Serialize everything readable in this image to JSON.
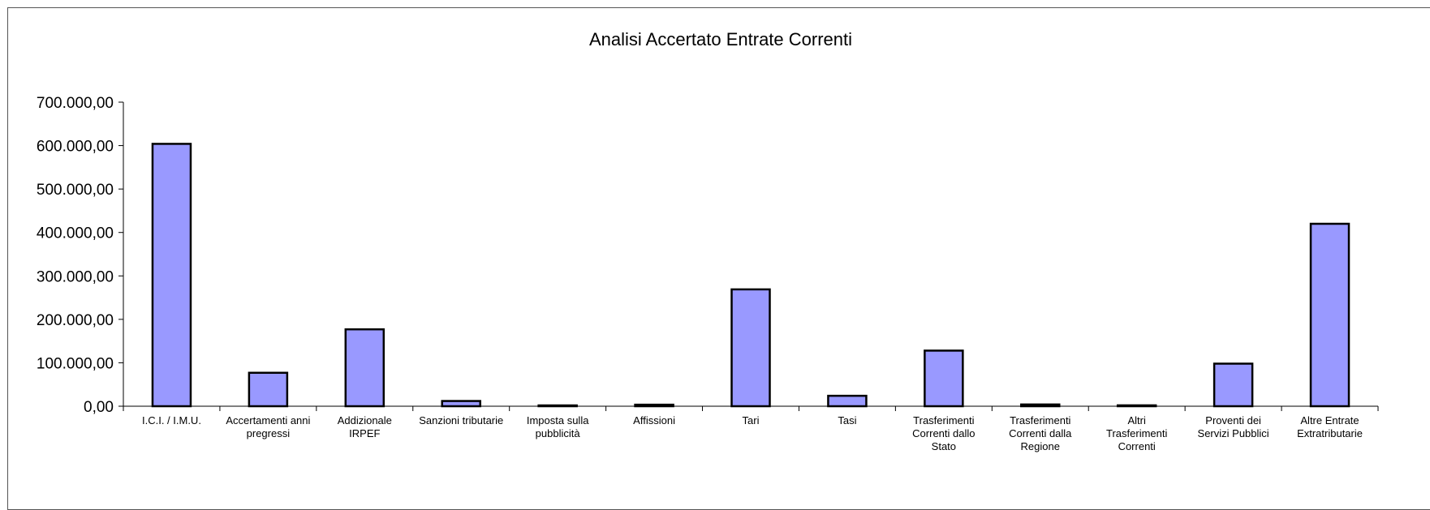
{
  "chart_data": {
    "type": "bar",
    "title": "Analisi Accertato Entrate Correnti",
    "xlabel": "",
    "ylabel": "",
    "ylim": [
      0,
      700000
    ],
    "yticks": [
      0,
      100000,
      200000,
      300000,
      400000,
      500000,
      600000,
      700000
    ],
    "ytick_labels": [
      "0,00",
      "100.000,00",
      "200.000,00",
      "300.000,00",
      "400.000,00",
      "500.000,00",
      "600.000,00",
      "700.000,00"
    ],
    "categories": [
      [
        "I.C.I. / I.M.U."
      ],
      [
        "Accertamenti anni",
        "pregressi"
      ],
      [
        "Addizionale",
        "IRPEF"
      ],
      [
        "Sanzioni tributarie"
      ],
      [
        "Imposta sulla",
        "pubblicità"
      ],
      [
        "Affissioni"
      ],
      [
        "Tari"
      ],
      [
        "Tasi"
      ],
      [
        "Trasferimenti",
        "Correnti dallo",
        "Stato"
      ],
      [
        "Trasferimenti",
        "Correnti dalla",
        "Regione"
      ],
      [
        "Altri",
        "Trasferimenti",
        "Correnti"
      ],
      [
        "Proventi dei",
        "Servizi Pubblici"
      ],
      [
        "Altre Entrate",
        "Extratributarie"
      ]
    ],
    "values": [
      604000,
      77000,
      177000,
      12000,
      1000,
      3500,
      269000,
      24000,
      128000,
      4000,
      2000,
      98000,
      420000
    ],
    "grid": false,
    "legend": "none",
    "bar_color": "#9999ff",
    "bar_edge_color": "#000000"
  }
}
